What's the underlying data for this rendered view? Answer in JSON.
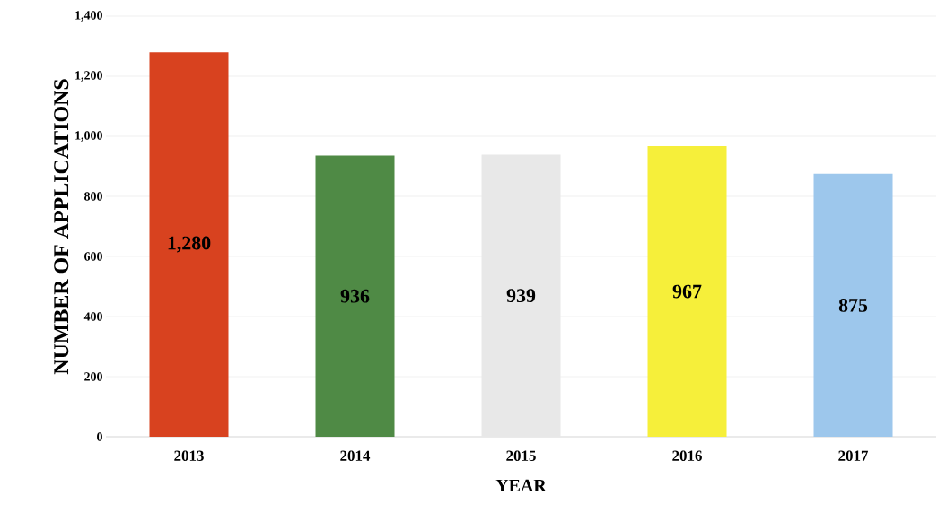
{
  "chart_data": {
    "type": "bar",
    "xlabel": "YEAR",
    "ylabel": "NUMBER OF APPLICATIONS",
    "categories": [
      "2013",
      "2014",
      "2015",
      "2016",
      "2017"
    ],
    "values": [
      1280,
      936,
      939,
      967,
      875
    ],
    "colors": [
      "#d8421f",
      "#4f8a45",
      "#e8e8e8",
      "#f6ef3a",
      "#9dc7ec"
    ],
    "value_labels": [
      "1,280",
      "936",
      "939",
      "967",
      "875"
    ],
    "ylim": [
      0,
      1400
    ],
    "yticks": [
      0,
      200,
      400,
      600,
      800,
      {
        "value": 1000,
        "label": "1,000"
      },
      {
        "value": 1200,
        "label": "1,200"
      },
      {
        "value": 1400,
        "label": "1,400"
      }
    ],
    "grid": "y"
  }
}
